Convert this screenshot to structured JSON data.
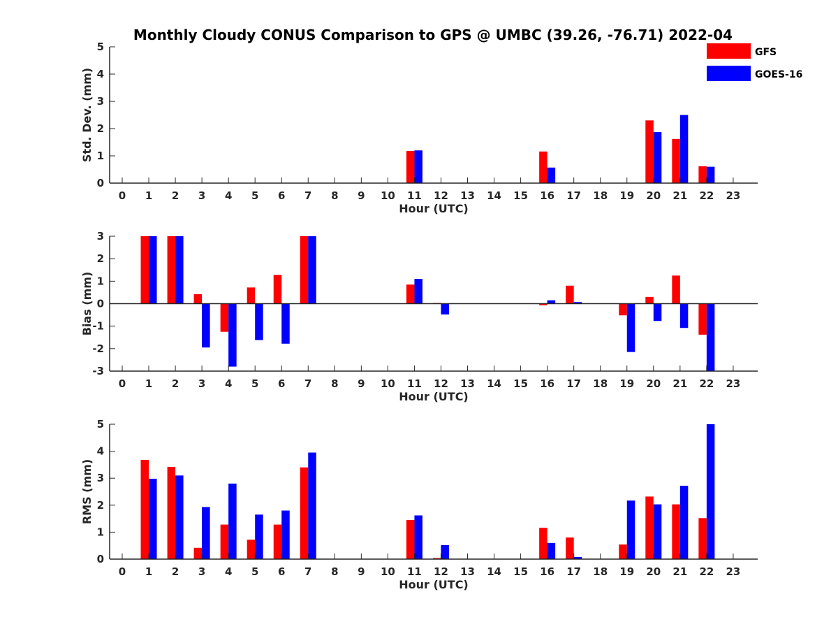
{
  "title": "Monthly Cloudy CONUS Comparison to GPS @ UMBC (39.26, -76.71) 2022-04",
  "colors": {
    "GFS": "#ff0000",
    "GOES-16": "#0000ff",
    "axis": "#262626"
  },
  "legend": [
    {
      "name": "GFS",
      "color": "#ff0000"
    },
    {
      "name": "GOES-16",
      "color": "#0000ff"
    }
  ],
  "chart_data": [
    {
      "type": "bar",
      "title": "Monthly Cloudy CONUS Comparison to GPS @ UMBC (39.26, -76.71) 2022-04",
      "xlabel": "Hour (UTC)",
      "ylabel": "Std. Dev. (mm)",
      "ylim": [
        0,
        5
      ],
      "yticks": [
        0,
        1,
        2,
        3,
        4,
        5
      ],
      "categories": [
        "0",
        "1",
        "2",
        "3",
        "4",
        "5",
        "6",
        "7",
        "8",
        "9",
        "10",
        "11",
        "12",
        "13",
        "14",
        "15",
        "16",
        "17",
        "18",
        "19",
        "20",
        "21",
        "22",
        "23"
      ],
      "series": [
        {
          "name": "GFS",
          "values": [
            0,
            0,
            0,
            0,
            0,
            0,
            0,
            0,
            0,
            0,
            0,
            1.18,
            0,
            0,
            0,
            0,
            1.16,
            0,
            0,
            0,
            2.3,
            1.62,
            0.62,
            0
          ]
        },
        {
          "name": "GOES-16",
          "values": [
            0,
            0,
            0,
            0,
            0,
            0,
            0,
            0,
            0,
            0,
            0,
            1.2,
            0,
            0,
            0,
            0,
            0.57,
            0,
            0,
            0,
            1.87,
            2.5,
            0.6,
            0
          ]
        }
      ]
    },
    {
      "type": "bar",
      "xlabel": "Hour (UTC)",
      "ylabel": "Bias (mm)",
      "ylim": [
        -3,
        3
      ],
      "yticks": [
        -3,
        -2,
        -1,
        0,
        1,
        2,
        3
      ],
      "categories": [
        "0",
        "1",
        "2",
        "3",
        "4",
        "5",
        "6",
        "7",
        "8",
        "9",
        "10",
        "11",
        "12",
        "13",
        "14",
        "15",
        "16",
        "17",
        "18",
        "19",
        "20",
        "21",
        "22",
        "23"
      ],
      "series": [
        {
          "name": "GFS",
          "values": [
            0,
            3,
            3,
            0.42,
            -1.25,
            0.72,
            1.28,
            3,
            0,
            0,
            0,
            0.85,
            0.03,
            0,
            0,
            0,
            -0.07,
            0.8,
            0,
            -0.52,
            0.3,
            1.25,
            -1.38,
            0
          ]
        },
        {
          "name": "GOES-16",
          "values": [
            0,
            3,
            3,
            -1.95,
            -2.8,
            -1.62,
            -1.78,
            3,
            0,
            0,
            0,
            1.1,
            -0.48,
            0,
            0,
            0,
            0.15,
            0.07,
            0,
            -2.15,
            -0.77,
            -1.08,
            -3,
            0
          ]
        }
      ]
    },
    {
      "type": "bar",
      "xlabel": "Hour (UTC)",
      "ylabel": "RMS (mm)",
      "ylim": [
        0,
        5
      ],
      "yticks": [
        0,
        1,
        2,
        3,
        4,
        5
      ],
      "categories": [
        "0",
        "1",
        "2",
        "3",
        "4",
        "5",
        "6",
        "7",
        "8",
        "9",
        "10",
        "11",
        "12",
        "13",
        "14",
        "15",
        "16",
        "17",
        "18",
        "19",
        "20",
        "21",
        "22",
        "23"
      ],
      "series": [
        {
          "name": "GFS",
          "values": [
            0,
            3.68,
            3.42,
            0.42,
            1.28,
            0.72,
            1.28,
            3.4,
            0,
            0,
            0,
            1.45,
            0.04,
            0,
            0,
            0,
            1.16,
            0.8,
            0,
            0.54,
            2.32,
            2.03,
            1.52,
            0
          ]
        },
        {
          "name": "GOES-16",
          "values": [
            0,
            2.98,
            3.1,
            1.93,
            2.8,
            1.65,
            1.8,
            3.95,
            0,
            0,
            0,
            1.62,
            0.52,
            0,
            0,
            0,
            0.6,
            0.08,
            0,
            2.17,
            2.03,
            2.72,
            5,
            0
          ]
        }
      ]
    }
  ]
}
